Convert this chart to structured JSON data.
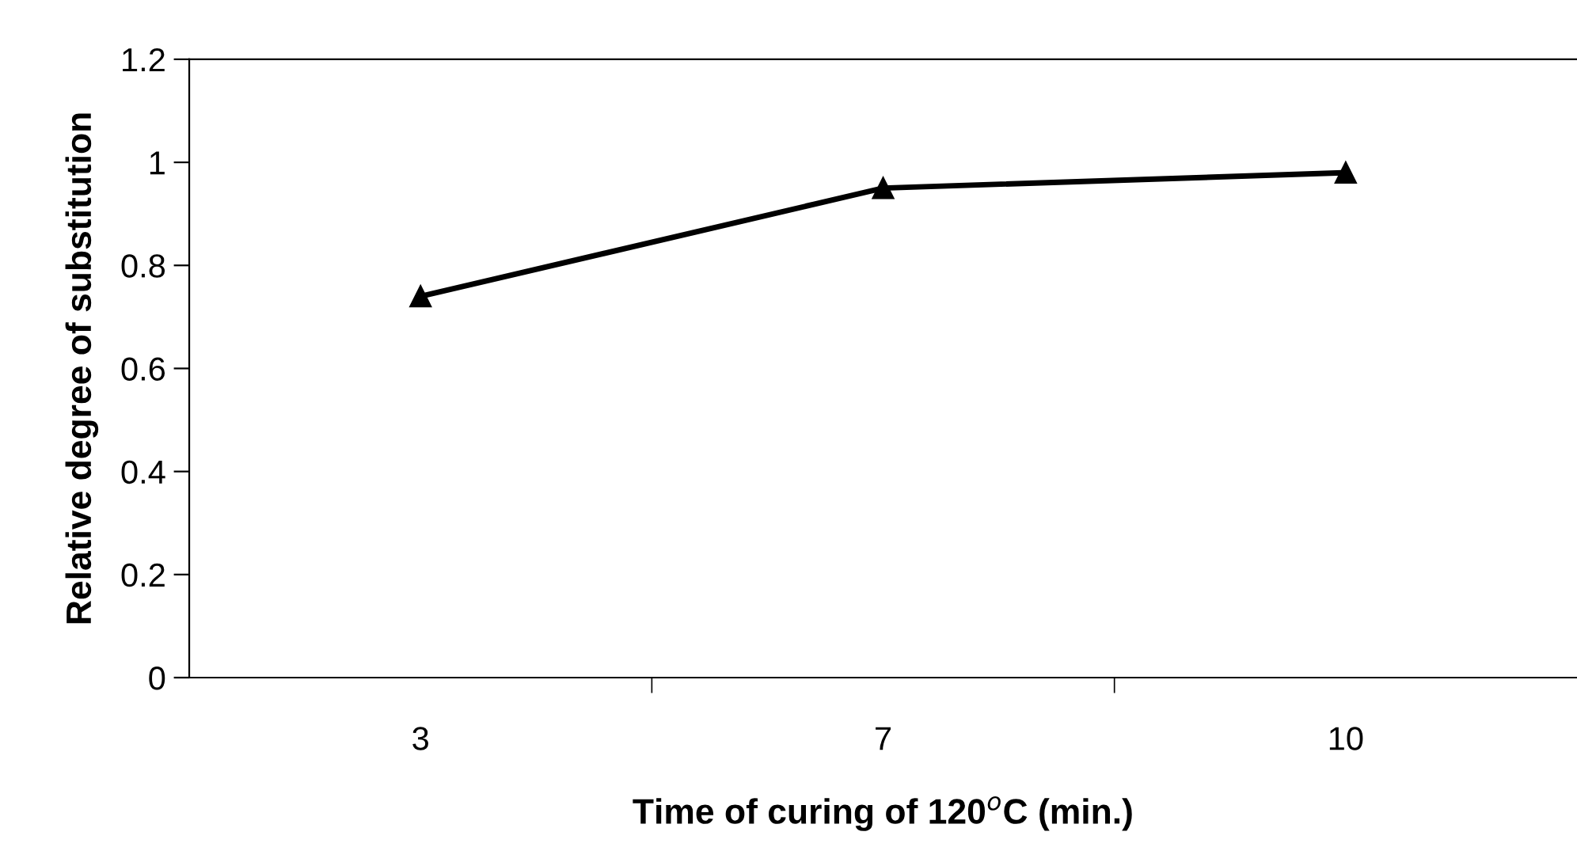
{
  "chart_data": {
    "type": "line",
    "xlabel": "Time of curing of 120$^{o}$C (min.)",
    "ylabel": "Relative degree of substitution",
    "categories": [
      "3",
      "7",
      "10"
    ],
    "series": [
      {
        "color": "#000000",
        "values": [
          0.74,
          0.95,
          0.98
        ]
      }
    ],
    "ylim": [
      0,
      1.2
    ],
    "yticks": [
      0,
      0.2,
      0.4,
      0.6,
      0.8,
      1,
      1.2
    ],
    "grid": false,
    "legend": false,
    "marker": "triangle",
    "line_style": "solid"
  }
}
